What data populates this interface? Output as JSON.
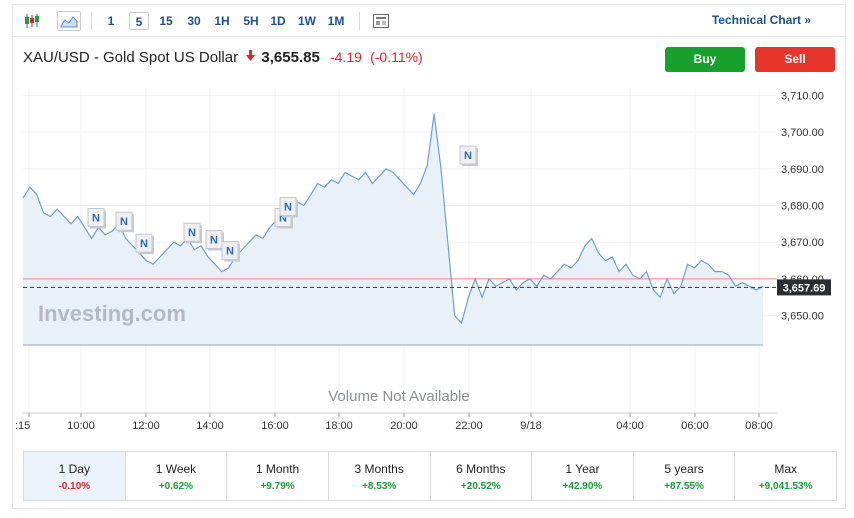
{
  "toolbar": {
    "icons": [
      "candlestick-icon",
      "area-chart-icon",
      "news-icon"
    ],
    "timeframes": [
      "1",
      "5",
      "15",
      "30",
      "1H",
      "5H",
      "1D",
      "1W",
      "1M"
    ],
    "active_timeframe": "5",
    "technical_chart": "Technical Chart »"
  },
  "header": {
    "instrument": "XAU/USD - Gold Spot US Dollar",
    "price": "3,655.85",
    "change": "-4.19",
    "change_pct": "(-0.11%)",
    "buy_label": "Buy",
    "sell_label": "Sell"
  },
  "chart": {
    "watermark": "Investing.com",
    "volume_text": "Volume Not Available",
    "news_marker_label": "N",
    "current_price_label": "3,657.69"
  },
  "chart_data": {
    "type": "area",
    "y_ticks": [
      "3,710.00",
      "3,700.00",
      "3,690.00",
      "3,680.00",
      "3,670.00",
      "3,660.00",
      "3,650.00"
    ],
    "x_ticks": [
      ":15",
      "10:00",
      "12:00",
      "14:00",
      "16:00",
      "18:00",
      "20:00",
      "22:00",
      "9/18",
      "04:00",
      "06:00",
      "08:00"
    ],
    "ylim": [
      3642,
      3712
    ],
    "previous_close": 3660.0,
    "last_value": 3657.69,
    "grid": true,
    "values": [
      3682,
      3685,
      3683,
      3678,
      3677,
      3679,
      3677,
      3675,
      3677,
      3674,
      3671,
      3674,
      3672,
      3673,
      3675,
      3671,
      3669,
      3667,
      3665,
      3664,
      3666,
      3668,
      3670,
      3669,
      3671,
      3668,
      3669,
      3666,
      3664,
      3662,
      3663,
      3666,
      3668,
      3670,
      3672,
      3671,
      3674,
      3676,
      3675,
      3679,
      3681,
      3680,
      3683,
      3686,
      3685,
      3687,
      3686,
      3689,
      3688,
      3687,
      3689,
      3686,
      3688,
      3690,
      3689,
      3687,
      3685,
      3683,
      3686,
      3691,
      3705,
      3690,
      3670,
      3650,
      3648,
      3655,
      3660,
      3655,
      3660,
      3658,
      3659,
      3660,
      3657,
      3659,
      3660,
      3658,
      3661,
      3660,
      3662,
      3664,
      3663,
      3665,
      3669,
      3671,
      3667,
      3665,
      3666,
      3662,
      3664,
      3661,
      3660,
      3662,
      3657,
      3655,
      3660,
      3656,
      3658,
      3664,
      3663,
      3665,
      3664,
      3662,
      3662,
      3661,
      3658,
      3659,
      3658,
      3657,
      3658
    ],
    "news_markers": [
      3677,
      3676,
      3670,
      3673,
      3671,
      3668,
      3677,
      3680,
      3694
    ]
  },
  "periods": [
    {
      "label": "1 Day",
      "value": "-0.10%",
      "sign": "neg",
      "active": true
    },
    {
      "label": "1 Week",
      "value": "+0.62%",
      "sign": "pos",
      "active": false
    },
    {
      "label": "1 Month",
      "value": "+9.79%",
      "sign": "pos",
      "active": false
    },
    {
      "label": "3 Months",
      "value": "+8.53%",
      "sign": "pos",
      "active": false
    },
    {
      "label": "6 Months",
      "value": "+20.52%",
      "sign": "pos",
      "active": false
    },
    {
      "label": "1 Year",
      "value": "+42.90%",
      "sign": "pos",
      "active": false
    },
    {
      "label": "5 years",
      "value": "+87.55%",
      "sign": "pos",
      "active": false
    },
    {
      "label": "Max",
      "value": "+9,041.53%",
      "sign": "pos",
      "active": false
    }
  ]
}
